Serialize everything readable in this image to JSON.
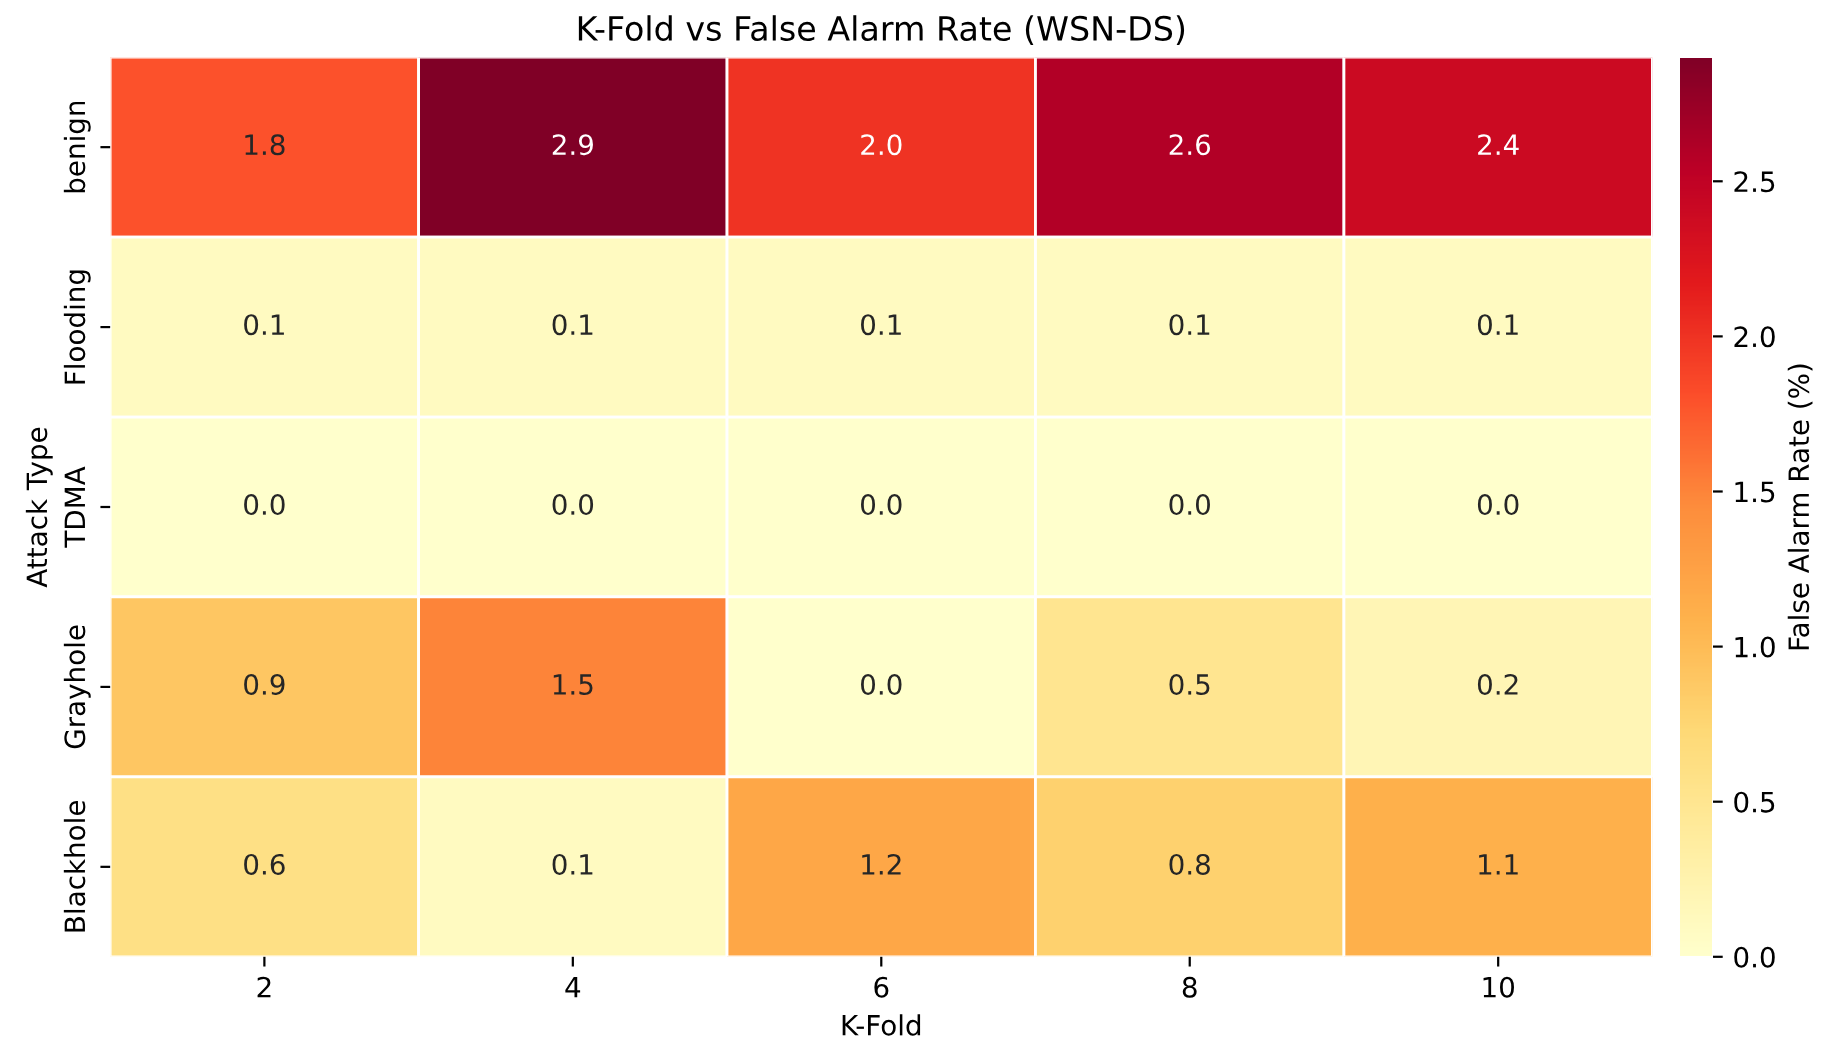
{
  "chart_data": {
    "type": "heatmap",
    "title": "K-Fold vs False Alarm Rate (WSN-DS)",
    "xlabel": "K-Fold",
    "ylabel": "Attack Type",
    "clabel": "False Alarm Rate (%)",
    "categories": [
      "2",
      "4",
      "6",
      "8",
      "10"
    ],
    "y_categories": [
      "benign",
      "Flooding",
      "TDMA",
      "Grayhole",
      "Blackhole"
    ],
    "cells": [
      [
        1.8,
        2.9,
        2.0,
        2.6,
        2.4
      ],
      [
        0.1,
        0.1,
        0.1,
        0.1,
        0.1
      ],
      [
        0.0,
        0.0,
        0.0,
        0.0,
        0.0
      ],
      [
        0.9,
        1.5,
        0.0,
        0.5,
        0.2
      ],
      [
        0.6,
        0.1,
        1.2,
        0.8,
        1.1
      ]
    ],
    "cell_labels": [
      [
        "1.8",
        "2.9",
        "2.0",
        "2.6",
        "2.4"
      ],
      [
        "0.1",
        "0.1",
        "0.1",
        "0.1",
        "0.1"
      ],
      [
        "0.0",
        "0.0",
        "0.0",
        "0.0",
        "0.0"
      ],
      [
        "0.9",
        "1.5",
        "0.0",
        "0.5",
        "0.2"
      ],
      [
        "0.6",
        "0.1",
        "1.2",
        "0.8",
        "1.1"
      ]
    ],
    "clim": [
      0,
      2.9
    ],
    "cticks": [
      {
        "value": 0,
        "label": "0.0"
      },
      0.5,
      {
        "value": 1,
        "label": "1.0"
      },
      1.5,
      {
        "value": 2,
        "label": "2.0"
      },
      2.5
    ]
  }
}
